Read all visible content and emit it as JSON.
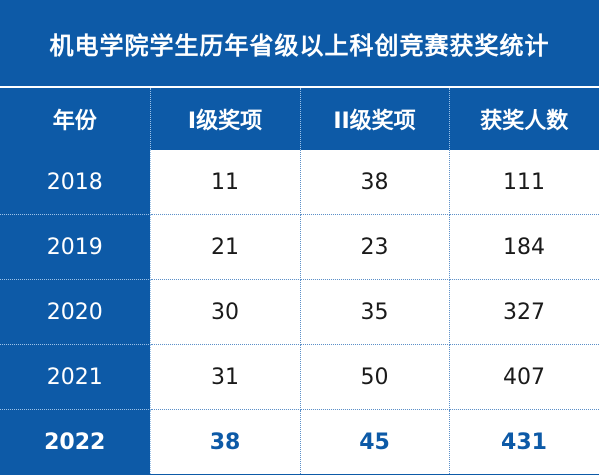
{
  "title": "机电学院学生历年省级以上科创竞赛获奖统计",
  "colors": {
    "primary_blue": "#0d5aa7",
    "header_text": "#ffffff",
    "highlight_text": "#0d5aa7"
  },
  "chart_data": {
    "type": "table",
    "title": "机电学院学生历年省级以上科创竞赛获奖统计",
    "columns": [
      "年份",
      "I级奖项",
      "II级奖项",
      "获奖人数"
    ],
    "rows": [
      [
        "2018",
        "11",
        "38",
        "111"
      ],
      [
        "2019",
        "21",
        "23",
        "184"
      ],
      [
        "2020",
        "30",
        "35",
        "327"
      ],
      [
        "2021",
        "31",
        "50",
        "407"
      ],
      [
        "2022",
        "38",
        "45",
        "431"
      ]
    ],
    "highlighted_row": "2022"
  }
}
